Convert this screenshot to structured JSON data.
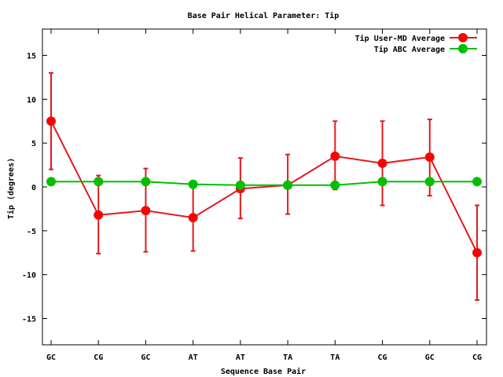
{
  "chart_data": {
    "type": "line",
    "title": "Base Pair Helical Parameter: Tip",
    "xlabel": "Sequence Base Pair",
    "ylabel": "Tip (degrees)",
    "categories": [
      "GC",
      "CG",
      "GC",
      "AT",
      "AT",
      "TA",
      "TA",
      "CG",
      "GC",
      "CG"
    ],
    "ylim": [
      -18,
      18
    ],
    "yticks": [
      -15,
      -10,
      -5,
      0,
      5,
      10,
      15
    ],
    "legend_position": "top-right",
    "grid": false,
    "series": [
      {
        "name": "Tip User-MD Average",
        "color": "#ff0000",
        "line_color": "#e31a1c",
        "values": [
          7.5,
          -3.2,
          -2.7,
          -3.5,
          -0.2,
          0.2,
          3.5,
          2.7,
          3.4,
          -7.5
        ],
        "err_low": [
          2.0,
          -7.6,
          -7.4,
          -7.3,
          -3.6,
          -3.1,
          -0.3,
          -2.1,
          -1.0,
          -12.9
        ],
        "err_high": [
          13.0,
          1.3,
          2.1,
          0.2,
          3.3,
          3.7,
          7.5,
          7.5,
          7.7,
          -2.1
        ]
      },
      {
        "name": "Tip ABC Average",
        "color": "#00c000",
        "line_color": "#00c000",
        "values": [
          0.6,
          0.6,
          0.6,
          0.3,
          0.2,
          0.2,
          0.2,
          0.6,
          0.6,
          0.6
        ]
      }
    ]
  }
}
